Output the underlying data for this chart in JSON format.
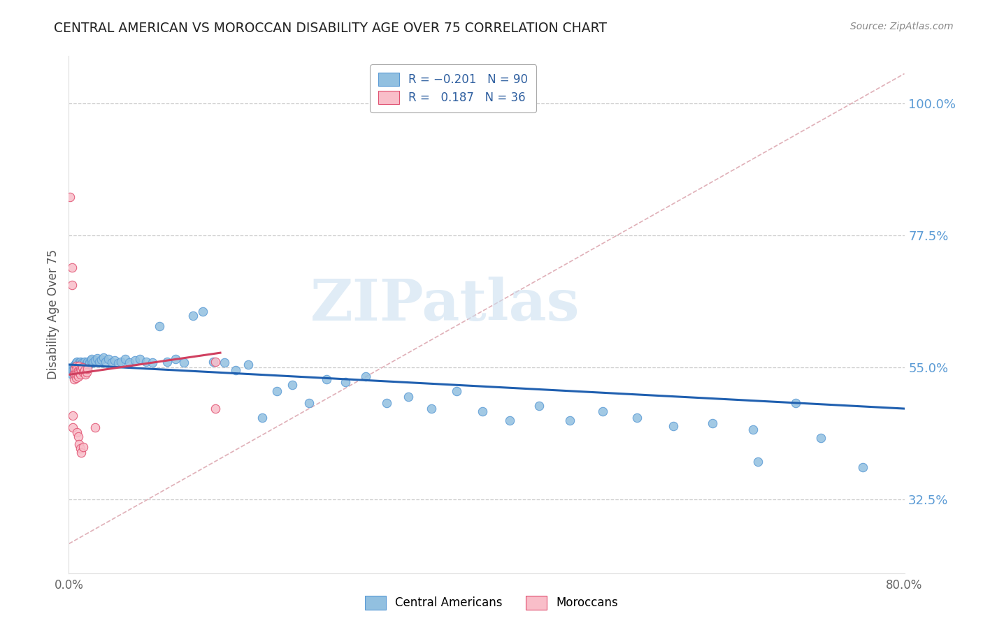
{
  "title": "CENTRAL AMERICAN VS MOROCCAN DISABILITY AGE OVER 75 CORRELATION CHART",
  "source_text": "Source: ZipAtlas.com",
  "ylabel": "Disability Age Over 75",
  "ytick_labels": [
    "100.0%",
    "77.5%",
    "55.0%",
    "32.5%"
  ],
  "ytick_values": [
    1.0,
    0.775,
    0.55,
    0.325
  ],
  "xmin": 0.0,
  "xmax": 0.8,
  "ymin": 0.2,
  "ymax": 1.08,
  "blue_color": "#92c0e0",
  "blue_edge_color": "#5b9bd5",
  "pink_color": "#f9bec9",
  "pink_edge_color": "#e05070",
  "blue_line_color": "#2060b0",
  "pink_line_color": "#d04060",
  "diagonal_color": "#e0b0b8",
  "watermark_color": "#cce0f0",
  "ca_points": [
    [
      0.002,
      0.548
    ],
    [
      0.003,
      0.542
    ],
    [
      0.003,
      0.538
    ],
    [
      0.004,
      0.55
    ],
    [
      0.004,
      0.545
    ],
    [
      0.005,
      0.552
    ],
    [
      0.005,
      0.546
    ],
    [
      0.005,
      0.54
    ],
    [
      0.006,
      0.555
    ],
    [
      0.006,
      0.548
    ],
    [
      0.006,
      0.542
    ],
    [
      0.007,
      0.558
    ],
    [
      0.007,
      0.552
    ],
    [
      0.007,
      0.545
    ],
    [
      0.008,
      0.56
    ],
    [
      0.008,
      0.553
    ],
    [
      0.008,
      0.547
    ],
    [
      0.009,
      0.555
    ],
    [
      0.009,
      0.548
    ],
    [
      0.009,
      0.542
    ],
    [
      0.01,
      0.558
    ],
    [
      0.01,
      0.552
    ],
    [
      0.01,
      0.545
    ],
    [
      0.011,
      0.56
    ],
    [
      0.011,
      0.553
    ],
    [
      0.012,
      0.556
    ],
    [
      0.012,
      0.55
    ],
    [
      0.013,
      0.558
    ],
    [
      0.013,
      0.552
    ],
    [
      0.014,
      0.555
    ],
    [
      0.015,
      0.56
    ],
    [
      0.016,
      0.553
    ],
    [
      0.017,
      0.557
    ],
    [
      0.018,
      0.56
    ],
    [
      0.019,
      0.555
    ],
    [
      0.02,
      0.558
    ],
    [
      0.021,
      0.562
    ],
    [
      0.022,
      0.565
    ],
    [
      0.023,
      0.558
    ],
    [
      0.025,
      0.562
    ],
    [
      0.027,
      0.566
    ],
    [
      0.029,
      0.56
    ],
    [
      0.031,
      0.563
    ],
    [
      0.033,
      0.567
    ],
    [
      0.035,
      0.56
    ],
    [
      0.038,
      0.565
    ],
    [
      0.041,
      0.558
    ],
    [
      0.044,
      0.562
    ],
    [
      0.047,
      0.557
    ],
    [
      0.05,
      0.56
    ],
    [
      0.054,
      0.565
    ],
    [
      0.058,
      0.558
    ],
    [
      0.063,
      0.562
    ],
    [
      0.068,
      0.565
    ],
    [
      0.074,
      0.56
    ],
    [
      0.08,
      0.558
    ],
    [
      0.087,
      0.62
    ],
    [
      0.094,
      0.56
    ],
    [
      0.102,
      0.565
    ],
    [
      0.11,
      0.558
    ],
    [
      0.119,
      0.638
    ],
    [
      0.128,
      0.645
    ],
    [
      0.138,
      0.56
    ],
    [
      0.149,
      0.558
    ],
    [
      0.16,
      0.545
    ],
    [
      0.172,
      0.555
    ],
    [
      0.185,
      0.465
    ],
    [
      0.199,
      0.51
    ],
    [
      0.214,
      0.52
    ],
    [
      0.23,
      0.49
    ],
    [
      0.247,
      0.53
    ],
    [
      0.265,
      0.525
    ],
    [
      0.284,
      0.535
    ],
    [
      0.304,
      0.49
    ],
    [
      0.325,
      0.5
    ],
    [
      0.347,
      0.48
    ],
    [
      0.371,
      0.51
    ],
    [
      0.396,
      0.475
    ],
    [
      0.422,
      0.46
    ],
    [
      0.45,
      0.485
    ],
    [
      0.48,
      0.46
    ],
    [
      0.511,
      0.475
    ],
    [
      0.544,
      0.465
    ],
    [
      0.579,
      0.45
    ],
    [
      0.616,
      0.455
    ],
    [
      0.655,
      0.445
    ],
    [
      0.696,
      0.49
    ],
    [
      0.66,
      0.39
    ],
    [
      0.72,
      0.43
    ],
    [
      0.76,
      0.38
    ]
  ],
  "moroccan_points": [
    [
      0.001,
      0.84
    ],
    [
      0.003,
      0.72
    ],
    [
      0.003,
      0.69
    ],
    [
      0.005,
      0.54
    ],
    [
      0.005,
      0.53
    ],
    [
      0.006,
      0.548
    ],
    [
      0.006,
      0.538
    ],
    [
      0.007,
      0.552
    ],
    [
      0.007,
      0.542
    ],
    [
      0.007,
      0.532
    ],
    [
      0.008,
      0.548
    ],
    [
      0.008,
      0.538
    ],
    [
      0.009,
      0.545
    ],
    [
      0.009,
      0.535
    ],
    [
      0.01,
      0.552
    ],
    [
      0.01,
      0.542
    ],
    [
      0.011,
      0.548
    ],
    [
      0.011,
      0.538
    ],
    [
      0.012,
      0.545
    ],
    [
      0.013,
      0.55
    ],
    [
      0.014,
      0.542
    ],
    [
      0.015,
      0.545
    ],
    [
      0.016,
      0.538
    ],
    [
      0.017,
      0.542
    ],
    [
      0.018,
      0.548
    ],
    [
      0.004,
      0.468
    ],
    [
      0.004,
      0.448
    ],
    [
      0.008,
      0.44
    ],
    [
      0.009,
      0.432
    ],
    [
      0.01,
      0.42
    ],
    [
      0.011,
      0.412
    ],
    [
      0.012,
      0.405
    ],
    [
      0.014,
      0.415
    ],
    [
      0.025,
      0.448
    ],
    [
      0.14,
      0.56
    ],
    [
      0.14,
      0.48
    ]
  ]
}
